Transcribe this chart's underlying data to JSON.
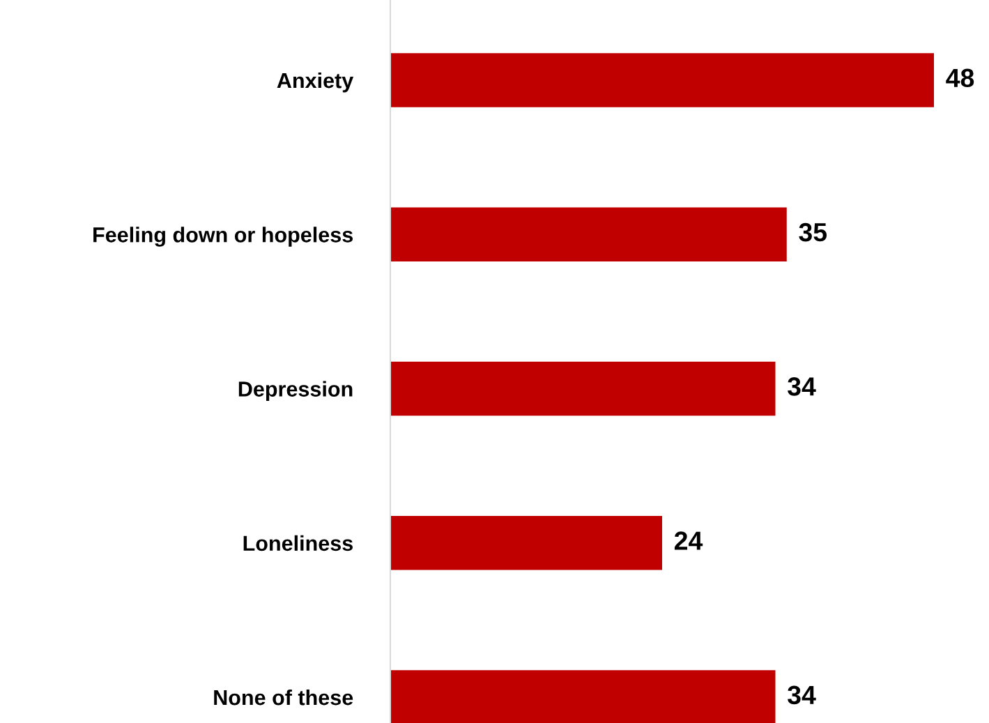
{
  "chart_data": {
    "type": "bar",
    "orientation": "horizontal",
    "categories": [
      "Anxiety",
      "Feeling down or hopeless",
      "Depression",
      "Loneliness",
      "None of these"
    ],
    "values": [
      48,
      35,
      34,
      24,
      34
    ],
    "color": "#c00000",
    "data_labels": true,
    "grid": false,
    "legend": false
  }
}
